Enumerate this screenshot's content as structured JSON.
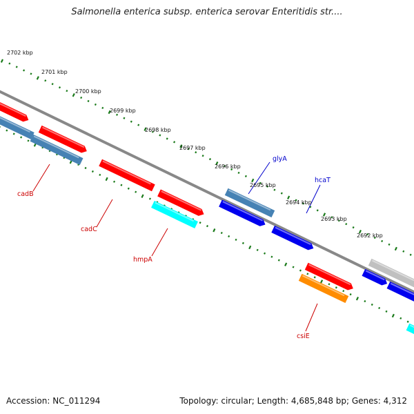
{
  "title": "Salmonella enterica subsp. enterica serovar Enteritidis str....",
  "footer": {
    "accession": "Accession: NC_011294",
    "summary": "Topology: circular; Length: 4,685,848 bp; Genes: 4,312"
  },
  "scale_labels": [
    "2702 kbp",
    "2701 kbp",
    "2700 kbp",
    "2699 kbp",
    "2698 kbp",
    "2697 kbp",
    "2696 kbp",
    "2695 kbp",
    "2694 kbp",
    "2693 kbp",
    "2692 kbp"
  ],
  "gene_labels": [
    {
      "name": "glyA",
      "color": "#0000cc"
    },
    {
      "name": "hcaT",
      "color": "#0000cc"
    },
    {
      "name": "cadB",
      "color": "#cc0000"
    },
    {
      "name": "cadC",
      "color": "#cc0000"
    },
    {
      "name": "hmpA",
      "color": "#cc0000"
    },
    {
      "name": "csiE",
      "color": "#cc0000"
    }
  ],
  "feature_colors": {
    "red": "#ff0000",
    "steelblue": "#4682b4",
    "blue": "#0000ee",
    "cyan": "#00ffff",
    "orange": "#ff8c00",
    "gray": "#c0c0c0",
    "backbone": "#888888",
    "scale": "#1a7a1a"
  }
}
